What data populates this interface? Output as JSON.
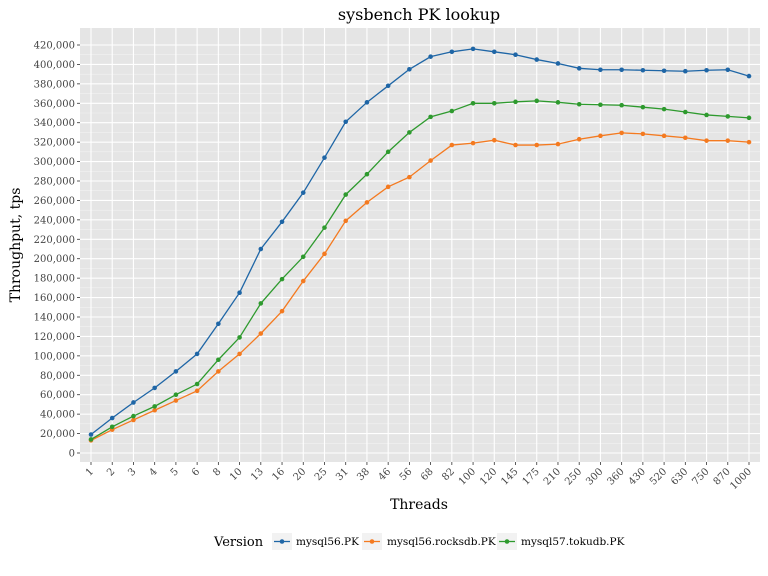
{
  "chart_data": {
    "type": "line",
    "title": "sysbench PK lookup",
    "xlabel": "Threads",
    "ylabel": "Throughput, tps",
    "ylim": [
      0,
      420000
    ],
    "yticks": [
      0,
      20000,
      40000,
      60000,
      80000,
      100000,
      120000,
      140000,
      160000,
      180000,
      200000,
      220000,
      240000,
      260000,
      280000,
      300000,
      320000,
      340000,
      360000,
      380000,
      400000,
      420000
    ],
    "ytick_labels": [
      "0",
      "20,000",
      "40,000",
      "60,000",
      "80,000",
      "100,000",
      "120,000",
      "140,000",
      "160,000",
      "180,000",
      "200,000",
      "220,000",
      "240,000",
      "260,000",
      "280,000",
      "300,000",
      "320,000",
      "340,000",
      "360,000",
      "380,000",
      "400,000",
      "420,000"
    ],
    "categories": [
      "1",
      "2",
      "3",
      "4",
      "5",
      "6",
      "8",
      "10",
      "13",
      "16",
      "20",
      "25",
      "31",
      "38",
      "46",
      "56",
      "68",
      "82",
      "100",
      "120",
      "145",
      "175",
      "210",
      "250",
      "300",
      "360",
      "430",
      "520",
      "630",
      "750",
      "870",
      "1000"
    ],
    "grid": true,
    "legend_position": "bottom",
    "legend_title": "Version",
    "series": [
      {
        "name": "mysql56.PK",
        "color": "#1f66a6",
        "values": [
          19000,
          36000,
          52000,
          67000,
          84000,
          102000,
          133000,
          165000,
          210000,
          238000,
          268000,
          304000,
          341000,
          361000,
          378000,
          395000,
          408000,
          413000,
          416000,
          413000,
          410000,
          405000,
          401000,
          396000,
          394500,
          394500,
          394000,
          393500,
          393000,
          394000,
          394500,
          388000
        ]
      },
      {
        "name": "mysql56.rocksdb.PK",
        "color": "#f47a20",
        "values": [
          13000,
          24000,
          34000,
          44000,
          54000,
          64000,
          84000,
          102000,
          123000,
          146000,
          177000,
          205000,
          239000,
          258000,
          274000,
          284000,
          301000,
          317000,
          319000,
          322000,
          317000,
          317000,
          318000,
          323000,
          326500,
          329500,
          328500,
          326500,
          324500,
          321500,
          321500,
          320000
        ]
      },
      {
        "name": "mysql57.tokudb.PK",
        "color": "#2e9a2e",
        "values": [
          14000,
          27000,
          38000,
          48000,
          60000,
          71000,
          96000,
          119000,
          154000,
          179000,
          202000,
          232000,
          266000,
          287000,
          310000,
          330000,
          346000,
          352000,
          360000,
          360000,
          361500,
          362500,
          361000,
          359000,
          358500,
          358000,
          356000,
          354000,
          351000,
          348000,
          346500,
          345000
        ]
      }
    ]
  }
}
